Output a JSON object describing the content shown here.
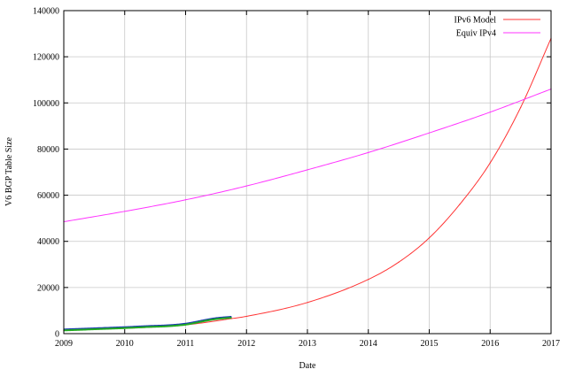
{
  "chart_data": {
    "type": "line",
    "xlabel": "Date",
    "ylabel": "V6 BGP Table Size",
    "xlim": [
      2009,
      2017
    ],
    "ylim": [
      0,
      140000
    ],
    "grid": true,
    "legend_position": "top-right",
    "x_ticks": [
      "2009",
      "2010",
      "2011",
      "2012",
      "2013",
      "2014",
      "2015",
      "2016",
      "2017"
    ],
    "y_ticks": [
      "0",
      "20000",
      "40000",
      "60000",
      "80000",
      "100000",
      "120000",
      "140000"
    ],
    "series": [
      {
        "name": "IPv6 Model",
        "color": "#ff3333",
        "legend": true,
        "x": [
          2009.0,
          2010.0,
          2011.0,
          2011.75,
          2012.0,
          2013.0,
          2014.0,
          2014.5,
          2015.0,
          2015.5,
          2016.0,
          2016.5,
          2017.0
        ],
        "y": [
          1500,
          2300,
          3800,
          6500,
          7500,
          13500,
          23500,
          31000,
          41500,
          56000,
          74000,
          98000,
          128000
        ]
      },
      {
        "name": "Equiv IPv4",
        "color": "#ff33ff",
        "legend": true,
        "x": [
          2009.0,
          2010.0,
          2011.0,
          2012.0,
          2013.0,
          2014.0,
          2015.0,
          2016.0,
          2017.0
        ],
        "y": [
          48500,
          53000,
          58000,
          64000,
          71000,
          78500,
          87000,
          96000,
          106000
        ]
      },
      {
        "name": "",
        "color": "#1a3ab0",
        "legend": false,
        "x": [
          2009.0,
          2009.5,
          2010.0,
          2010.4,
          2010.7,
          2011.0,
          2011.15,
          2011.3,
          2011.5,
          2011.75
        ],
        "y": [
          1800,
          2300,
          2800,
          3300,
          3600,
          4300,
          5000,
          5800,
          6700,
          7300
        ]
      },
      {
        "name": "",
        "color": "#22aa22",
        "legend": false,
        "x": [
          2009.0,
          2009.5,
          2010.0,
          2010.4,
          2010.7,
          2011.0,
          2011.15,
          2011.3,
          2011.5,
          2011.75
        ],
        "y": [
          1400,
          1900,
          2400,
          2900,
          3200,
          3900,
          4600,
          5400,
          6300,
          6900
        ]
      }
    ]
  }
}
